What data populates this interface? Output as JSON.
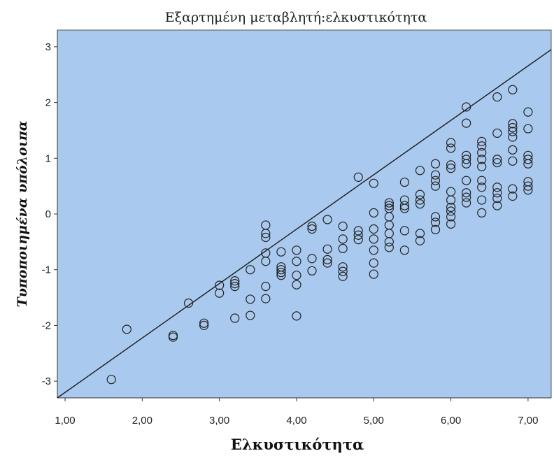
{
  "chart_data": {
    "type": "scatter",
    "title": "Εξαρτημένη μεταβλητή:ελκυστικότητα",
    "xlabel": "Ελκυστικότητα",
    "ylabel": "Τυποποιημένα υπόλοιπα",
    "xlim": [
      0.9,
      7.3
    ],
    "ylim": [
      -3.3,
      3.3
    ],
    "x_ticks": [
      "1,00",
      "2,00",
      "3,00",
      "4,00",
      "5,00",
      "6,00",
      "7,00"
    ],
    "y_ticks": [
      "3",
      "2",
      "1",
      "0",
      "-1",
      "-2",
      "-3"
    ],
    "grid": false,
    "reference_line": {
      "from": [
        0.9,
        -3.3
      ],
      "to": [
        7.3,
        2.95
      ]
    },
    "colors": {
      "plot_background": "#a9c9ee",
      "marker_stroke": "#222222",
      "line": "#1a1a1a"
    },
    "points": [
      [
        1.6,
        -2.97
      ],
      [
        1.8,
        -2.07
      ],
      [
        2.4,
        -2.18
      ],
      [
        2.4,
        -2.21
      ],
      [
        2.6,
        -1.6
      ],
      [
        2.8,
        -1.96
      ],
      [
        2.8,
        -2.0
      ],
      [
        3.0,
        -1.28
      ],
      [
        3.0,
        -1.42
      ],
      [
        3.2,
        -1.2
      ],
      [
        3.2,
        -1.25
      ],
      [
        3.2,
        -1.3
      ],
      [
        3.2,
        -1.87
      ],
      [
        3.4,
        -1.0
      ],
      [
        3.4,
        -1.53
      ],
      [
        3.4,
        -1.82
      ],
      [
        3.6,
        -0.2
      ],
      [
        3.6,
        -0.35
      ],
      [
        3.6,
        -0.42
      ],
      [
        3.6,
        -0.7
      ],
      [
        3.6,
        -0.85
      ],
      [
        3.6,
        -1.3
      ],
      [
        3.6,
        -1.52
      ],
      [
        3.8,
        -0.68
      ],
      [
        3.8,
        -0.95
      ],
      [
        3.8,
        -1.0
      ],
      [
        3.8,
        -1.05
      ],
      [
        3.8,
        -1.1
      ],
      [
        4.0,
        -0.65
      ],
      [
        4.0,
        -0.85
      ],
      [
        4.0,
        -1.1
      ],
      [
        4.0,
        -1.27
      ],
      [
        4.0,
        -1.83
      ],
      [
        4.2,
        -0.22
      ],
      [
        4.2,
        -0.27
      ],
      [
        4.2,
        -0.8
      ],
      [
        4.2,
        -1.02
      ],
      [
        4.4,
        -0.1
      ],
      [
        4.4,
        -0.63
      ],
      [
        4.4,
        -0.82
      ],
      [
        4.4,
        -0.88
      ],
      [
        4.6,
        -0.22
      ],
      [
        4.6,
        -0.45
      ],
      [
        4.6,
        -0.62
      ],
      [
        4.6,
        -0.95
      ],
      [
        4.6,
        -1.03
      ],
      [
        4.6,
        -1.12
      ],
      [
        4.8,
        0.66
      ],
      [
        4.8,
        -0.3
      ],
      [
        4.8,
        -0.38
      ],
      [
        4.8,
        -0.46
      ],
      [
        5.0,
        0.55
      ],
      [
        5.0,
        0.02
      ],
      [
        5.0,
        -0.27
      ],
      [
        5.0,
        -0.45
      ],
      [
        5.0,
        -0.65
      ],
      [
        5.0,
        -0.88
      ],
      [
        5.0,
        -1.08
      ],
      [
        5.2,
        0.2
      ],
      [
        5.2,
        0.15
      ],
      [
        5.2,
        0.1
      ],
      [
        5.2,
        -0.05
      ],
      [
        5.2,
        -0.2
      ],
      [
        5.2,
        -0.35
      ],
      [
        5.2,
        -0.5
      ],
      [
        5.2,
        -0.6
      ],
      [
        5.4,
        0.57
      ],
      [
        5.4,
        0.25
      ],
      [
        5.4,
        0.15
      ],
      [
        5.4,
        0.1
      ],
      [
        5.4,
        -0.3
      ],
      [
        5.4,
        -0.65
      ],
      [
        5.6,
        0.78
      ],
      [
        5.6,
        0.35
      ],
      [
        5.6,
        0.25
      ],
      [
        5.6,
        0.18
      ],
      [
        5.6,
        -0.35
      ],
      [
        5.6,
        -0.48
      ],
      [
        5.8,
        0.9
      ],
      [
        5.8,
        0.7
      ],
      [
        5.8,
        0.6
      ],
      [
        5.8,
        0.5
      ],
      [
        5.8,
        -0.05
      ],
      [
        5.8,
        -0.15
      ],
      [
        5.8,
        -0.28
      ],
      [
        6.0,
        1.28
      ],
      [
        6.0,
        1.18
      ],
      [
        6.0,
        0.88
      ],
      [
        6.0,
        0.82
      ],
      [
        6.0,
        0.4
      ],
      [
        6.0,
        0.25
      ],
      [
        6.0,
        0.12
      ],
      [
        6.0,
        0.05
      ],
      [
        6.0,
        -0.05
      ],
      [
        6.0,
        -0.18
      ],
      [
        6.2,
        1.92
      ],
      [
        6.2,
        1.63
      ],
      [
        6.2,
        1.05
      ],
      [
        6.2,
        0.98
      ],
      [
        6.2,
        0.9
      ],
      [
        6.2,
        0.6
      ],
      [
        6.2,
        0.38
      ],
      [
        6.2,
        0.3
      ],
      [
        6.2,
        0.2
      ],
      [
        6.4,
        1.3
      ],
      [
        6.4,
        1.22
      ],
      [
        6.4,
        1.1
      ],
      [
        6.4,
        0.98
      ],
      [
        6.4,
        0.85
      ],
      [
        6.4,
        0.6
      ],
      [
        6.4,
        0.48
      ],
      [
        6.4,
        0.25
      ],
      [
        6.4,
        0.02
      ],
      [
        6.6,
        2.1
      ],
      [
        6.6,
        1.45
      ],
      [
        6.6,
        0.98
      ],
      [
        6.6,
        0.92
      ],
      [
        6.6,
        0.48
      ],
      [
        6.6,
        0.38
      ],
      [
        6.6,
        0.28
      ],
      [
        6.6,
        0.15
      ],
      [
        6.8,
        2.23
      ],
      [
        6.8,
        1.62
      ],
      [
        6.8,
        1.55
      ],
      [
        6.8,
        1.48
      ],
      [
        6.8,
        1.38
      ],
      [
        6.8,
        1.15
      ],
      [
        6.8,
        0.95
      ],
      [
        6.8,
        0.45
      ],
      [
        6.8,
        0.32
      ],
      [
        7.0,
        1.83
      ],
      [
        7.0,
        1.53
      ],
      [
        7.0,
        1.05
      ],
      [
        7.0,
        0.98
      ],
      [
        7.0,
        0.9
      ],
      [
        7.0,
        0.58
      ],
      [
        7.0,
        0.5
      ],
      [
        7.0,
        0.43
      ]
    ]
  }
}
